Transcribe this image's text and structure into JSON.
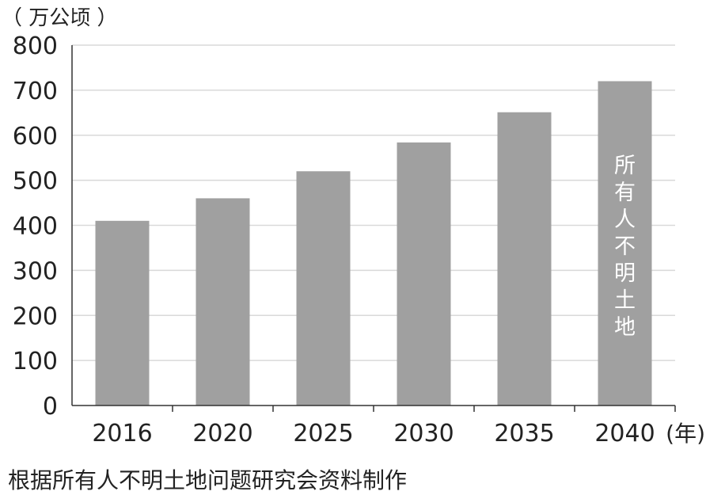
{
  "page": {
    "y_unit": "（ 万公顷 ）",
    "source": "根据所有人不明土地问题研究会资料制作"
  },
  "chart_data": {
    "type": "bar",
    "categories": [
      "2016",
      "2020",
      "2025",
      "2030",
      "2035",
      "2040"
    ],
    "values": [
      410,
      460,
      520,
      584,
      651,
      720
    ],
    "x_unit": "(年)",
    "bar_annotation": {
      "category": "2040",
      "text": "所有人不明土地"
    },
    "yticks": [
      0,
      100,
      200,
      300,
      400,
      500,
      600,
      700,
      800
    ],
    "ylim": [
      0,
      800
    ],
    "grid": true,
    "colors": {
      "bar": "#a0a0a0",
      "grid": "#d9d9d9",
      "axis": "#333333",
      "annotation_text": "#ffffff"
    }
  }
}
